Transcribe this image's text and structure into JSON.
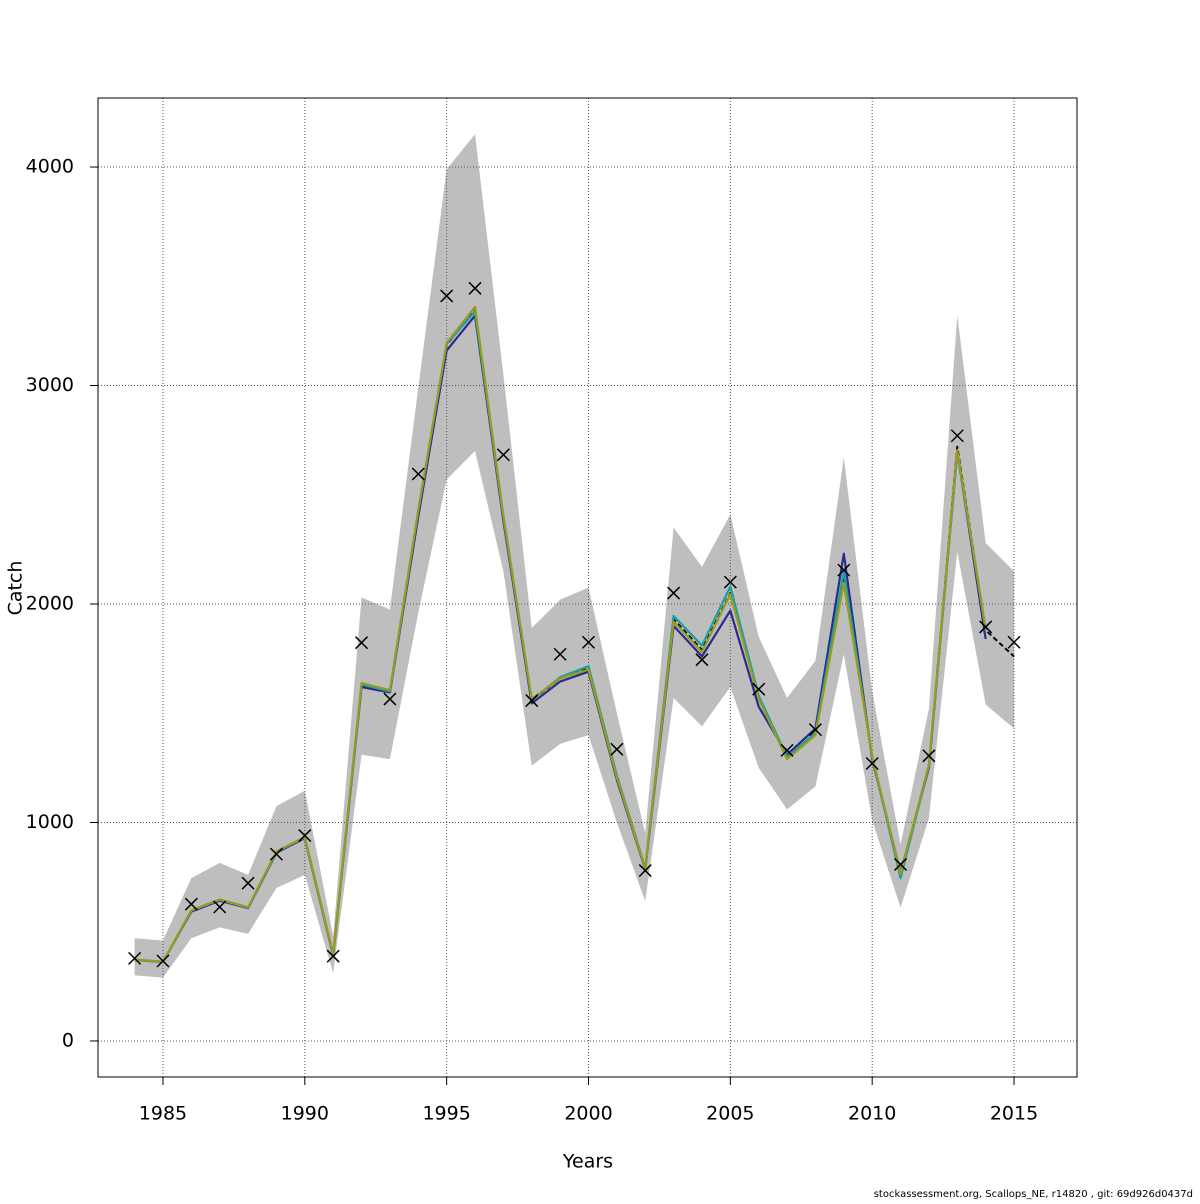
{
  "chart_data": {
    "type": "line",
    "xlabel": "Years",
    "ylabel": "Catch",
    "x": [
      1984,
      1985,
      1986,
      1987,
      1988,
      1989,
      1990,
      1991,
      1992,
      1993,
      1994,
      1995,
      1996,
      1997,
      1998,
      1999,
      2000,
      2001,
      2002,
      2003,
      2004,
      2005,
      2006,
      2007,
      2008,
      2009,
      2010,
      2011,
      2012,
      2013,
      2014,
      2015
    ],
    "xlim": [
      1982.71,
      2017.22
    ],
    "ylim": [
      -165,
      4316
    ],
    "xticks": [
      1985,
      1990,
      1995,
      2000,
      2005,
      2010,
      2015
    ],
    "yticks": [
      0,
      1000,
      2000,
      3000,
      4000
    ],
    "grid": true,
    "band": {
      "color": "#bebebe",
      "upper": [
        470,
        460,
        745,
        815,
        760,
        1075,
        1145,
        480,
        2030,
        1975,
        2990,
        3990,
        4150,
        3050,
        1890,
        2020,
        2075,
        1500,
        950,
        2350,
        2170,
        2410,
        1850,
        1570,
        1740,
        2670,
        1600,
        900,
        1520,
        3320,
        2280,
        2150
      ],
      "lower": [
        300,
        290,
        470,
        520,
        490,
        700,
        760,
        310,
        1310,
        1290,
        1960,
        2570,
        2700,
        2150,
        1260,
        1360,
        1400,
        1000,
        640,
        1570,
        1440,
        1620,
        1250,
        1060,
        1165,
        1770,
        1010,
        610,
        1020,
        2240,
        1540,
        1430
      ]
    },
    "series": [
      {
        "color": "#000000",
        "dashed": true,
        "values": [
          370,
          362,
          595,
          645,
          610,
          865,
          930,
          395,
          1630,
          1600,
          2420,
          3185,
          3350,
          2400,
          1560,
          1660,
          1705,
          1210,
          790,
          1930,
          1790,
          2050,
          1570,
          1300,
          1410,
          2120,
          1300,
          760,
          1260,
          2720,
          1880,
          1760
        ]
      },
      {
        "color": "#2b2b8c",
        "values": [
          372,
          362,
          592,
          642,
          608,
          862,
          928,
          392,
          1620,
          1595,
          2400,
          3160,
          3320,
          2380,
          1545,
          1645,
          1690,
          1195,
          785,
          1900,
          1760,
          1970,
          1530,
          1310,
          1430,
          2230,
          1290,
          770,
          1250,
          2700,
          1840,
          null
        ]
      },
      {
        "color": "#1aa0a0",
        "values": [
          370,
          361,
          596,
          646,
          610,
          866,
          931,
          396,
          1632,
          1600,
          2425,
          3190,
          3340,
          2395,
          1560,
          1665,
          1715,
          1215,
          792,
          1945,
          1810,
          2080,
          1580,
          1300,
          1410,
          2150,
          1300,
          745,
          1260,
          2690,
          1880,
          null
        ]
      },
      {
        "color": "#9a9a1f",
        "values": [
          371,
          363,
          598,
          648,
          612,
          868,
          933,
          397,
          1638,
          1606,
          2430,
          3195,
          3360,
          2405,
          1565,
          1660,
          1700,
          1205,
          788,
          1920,
          1780,
          2045,
          1565,
          1290,
          1400,
          2095,
          1305,
          765,
          1265,
          2705,
          1885,
          null
        ]
      }
    ],
    "observed": {
      "color": "#000000",
      "values": [
        378,
        366,
        626,
        613,
        722,
        855,
        940,
        388,
        1823,
        1565,
        2595,
        3410,
        3445,
        2683,
        1558,
        1770,
        1825,
        1335,
        780,
        2050,
        1745,
        2100,
        1610,
        1330,
        1425,
        2155,
        1270,
        808,
        1305,
        2770,
        1895,
        1825
      ]
    }
  },
  "footer": "stockassessment.org, Scallops_NE, r14820 , git: 69d926d0437d"
}
